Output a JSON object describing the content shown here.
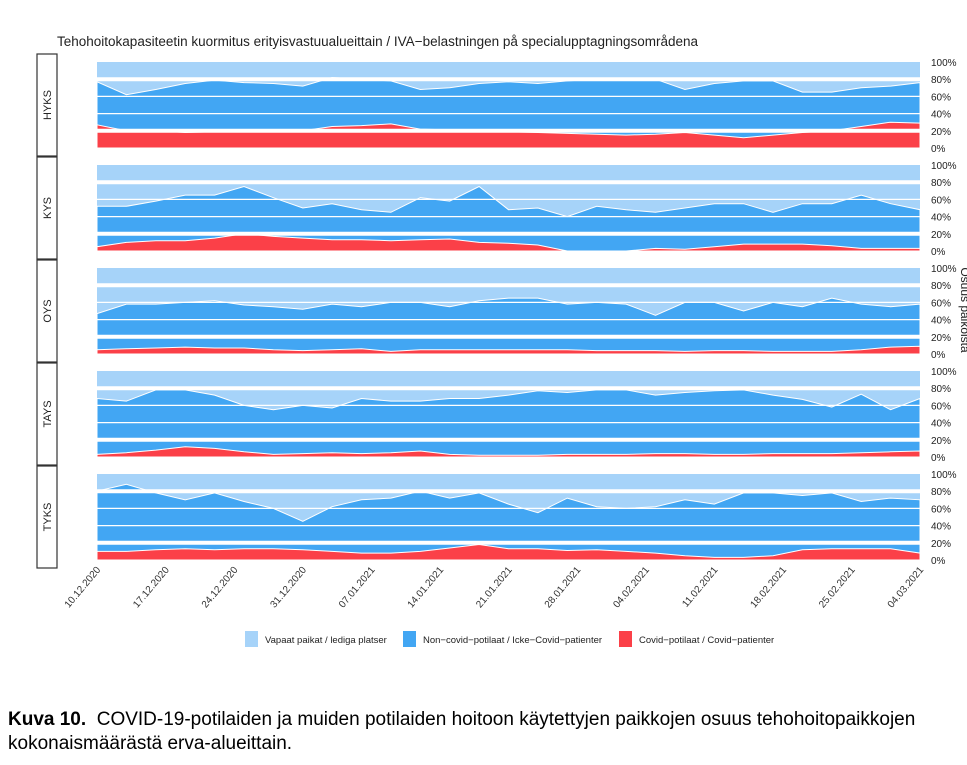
{
  "chart_data": {
    "type": "area",
    "stacked": true,
    "title": "Tehohoitokapasiteetin kuormitus erityisvastuualueittain / IVA−belastningen på specialupptagningsområdena",
    "xlabel": "",
    "ylabel": "Osuus paikoista",
    "ylim": [
      0,
      100
    ],
    "yticks": [
      "0%",
      "20%",
      "40%",
      "60%",
      "80%",
      "100%"
    ],
    "xticks": [
      "10.12.2020",
      "17.12.2020",
      "24.12.2020",
      "31.12.2020",
      "07.01.2021",
      "14.01.2021",
      "21.01.2021",
      "28.01.2021",
      "04.02.2021",
      "11.02.2021",
      "18.02.2021",
      "25.02.2021",
      "04.03.2021"
    ],
    "legend_position": "bottom",
    "legend": [
      {
        "name": "Vapaat paikat / lediga platser",
        "color": "#a6d3f9"
      },
      {
        "name": "Non−covid−potilaat / Icke−Covid−patienter",
        "color": "#42a6f3"
      },
      {
        "name": "Covid−potilaat / Covid−patienter",
        "color": "#fb4048"
      }
    ],
    "x": [
      "10.12.2020",
      "13.12.2020",
      "16.12.2020",
      "19.12.2020",
      "22.12.2020",
      "25.12.2020",
      "28.12.2020",
      "31.12.2020",
      "03.01.2021",
      "06.01.2021",
      "09.01.2021",
      "12.01.2021",
      "15.01.2021",
      "18.01.2021",
      "21.01.2021",
      "24.01.2021",
      "27.01.2021",
      "30.01.2021",
      "02.02.2021",
      "05.02.2021",
      "08.02.2021",
      "11.02.2021",
      "14.02.2021",
      "17.02.2021",
      "20.02.2021",
      "23.02.2021",
      "26.02.2021",
      "01.03.2021",
      "04.03.2021"
    ],
    "panels": [
      {
        "name": "HYKS",
        "covid": [
          27,
          20,
          20,
          18,
          19,
          19,
          19,
          20,
          25,
          26,
          28,
          22,
          21,
          19,
          19,
          18,
          17,
          16,
          15,
          16,
          18,
          15,
          12,
          15,
          18,
          20,
          25,
          30,
          29
        ],
        "occupied_total": [
          77,
          62,
          68,
          75,
          79,
          76,
          75,
          72,
          82,
          80,
          78,
          68,
          70,
          75,
          77,
          75,
          78,
          80,
          80,
          80,
          68,
          75,
          78,
          78,
          65,
          65,
          70,
          72,
          76
        ]
      },
      {
        "name": "KYS",
        "covid": [
          5,
          10,
          12,
          12,
          15,
          20,
          17,
          15,
          13,
          13,
          12,
          13,
          14,
          10,
          9,
          7,
          0,
          0,
          0,
          3,
          2,
          5,
          8,
          8,
          8,
          6,
          3,
          3,
          3
        ],
        "occupied_total": [
          52,
          52,
          58,
          65,
          65,
          75,
          62,
          50,
          55,
          48,
          45,
          62,
          58,
          75,
          48,
          50,
          40,
          52,
          48,
          45,
          50,
          55,
          55,
          45,
          55,
          55,
          65,
          55,
          48
        ]
      },
      {
        "name": "OYS",
        "covid": [
          5,
          6,
          7,
          8,
          7,
          7,
          5,
          4,
          5,
          6,
          3,
          5,
          5,
          5,
          5,
          5,
          5,
          4,
          4,
          4,
          3,
          4,
          4,
          3,
          3,
          3,
          5,
          8,
          9
        ],
        "occupied_total": [
          47,
          58,
          58,
          60,
          62,
          57,
          55,
          52,
          58,
          55,
          60,
          60,
          55,
          62,
          65,
          65,
          58,
          60,
          58,
          45,
          60,
          60,
          50,
          60,
          55,
          65,
          58,
          55,
          58
        ]
      },
      {
        "name": "TAYS",
        "covid": [
          3,
          5,
          8,
          12,
          10,
          6,
          3,
          4,
          5,
          4,
          5,
          7,
          3,
          2,
          2,
          2,
          3,
          3,
          3,
          4,
          4,
          3,
          3,
          4,
          4,
          4,
          5,
          6,
          7
        ],
        "occupied_total": [
          68,
          65,
          78,
          78,
          72,
          60,
          55,
          60,
          57,
          68,
          65,
          65,
          68,
          68,
          72,
          77,
          75,
          78,
          78,
          72,
          75,
          77,
          78,
          72,
          67,
          58,
          73,
          55,
          68
        ]
      },
      {
        "name": "TYKS",
        "covid": [
          10,
          10,
          12,
          13,
          12,
          13,
          13,
          12,
          10,
          8,
          8,
          10,
          14,
          18,
          13,
          13,
          11,
          12,
          10,
          8,
          5,
          3,
          3,
          5,
          12,
          13,
          13,
          13,
          8
        ],
        "occupied_total": [
          80,
          88,
          78,
          70,
          78,
          68,
          60,
          45,
          62,
          70,
          72,
          80,
          72,
          78,
          65,
          55,
          72,
          62,
          60,
          62,
          70,
          65,
          78,
          78,
          75,
          78,
          68,
          72,
          70
        ]
      }
    ]
  },
  "caption": {
    "label": "Kuva 10.",
    "text": "COVID-19-potilaiden ja muiden potilaiden hoitoon käytettyjen paikkojen osuus teho­hoitopaikkojen kokonaismäärästä erva-alueittain."
  }
}
